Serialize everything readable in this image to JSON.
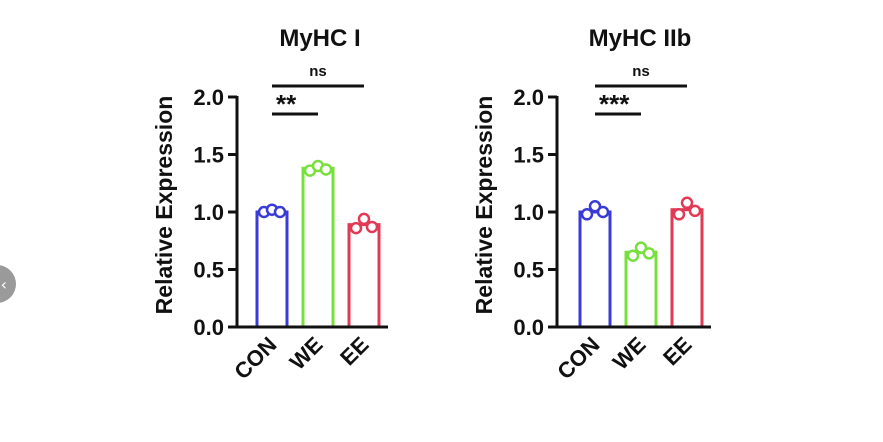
{
  "nav": {
    "prev_icon": "chevron-left-icon",
    "prev_glyph": "‹"
  },
  "chart_data": [
    {
      "type": "bar",
      "title": "MyHC I",
      "xlabel": "",
      "ylabel": "Relative Expression",
      "ylim": [
        0,
        2.0
      ],
      "yticks": [
        "0.0",
        "0.5",
        "1.0",
        "1.5",
        "2.0"
      ],
      "categories": [
        "CON",
        "WE",
        "EE"
      ],
      "values": [
        1.0,
        1.38,
        0.89
      ],
      "colors": [
        "#3a3ad6",
        "#78e03c",
        "#e23a55"
      ],
      "points": [
        [
          1.0,
          1.02,
          1.0
        ],
        [
          1.36,
          1.4,
          1.37
        ],
        [
          0.86,
          0.94,
          0.87
        ]
      ],
      "significance": [
        {
          "from": 0,
          "to": 1,
          "label": "**"
        },
        {
          "from": 0,
          "to": 2,
          "label": "ns"
        }
      ]
    },
    {
      "type": "bar",
      "title": "MyHC IIb",
      "xlabel": "",
      "ylabel": "Relative Expression",
      "ylim": [
        0,
        2.0
      ],
      "yticks": [
        "0.0",
        "0.5",
        "1.0",
        "1.5",
        "2.0"
      ],
      "categories": [
        "CON",
        "WE",
        "EE"
      ],
      "values": [
        1.0,
        0.65,
        1.02
      ],
      "colors": [
        "#3a3ad6",
        "#78e03c",
        "#e23a55"
      ],
      "points": [
        [
          0.98,
          1.05,
          1.0
        ],
        [
          0.62,
          0.69,
          0.64
        ],
        [
          0.98,
          1.08,
          1.01
        ]
      ],
      "significance": [
        {
          "from": 0,
          "to": 1,
          "label": "***"
        },
        {
          "from": 0,
          "to": 2,
          "label": "ns"
        }
      ]
    }
  ]
}
